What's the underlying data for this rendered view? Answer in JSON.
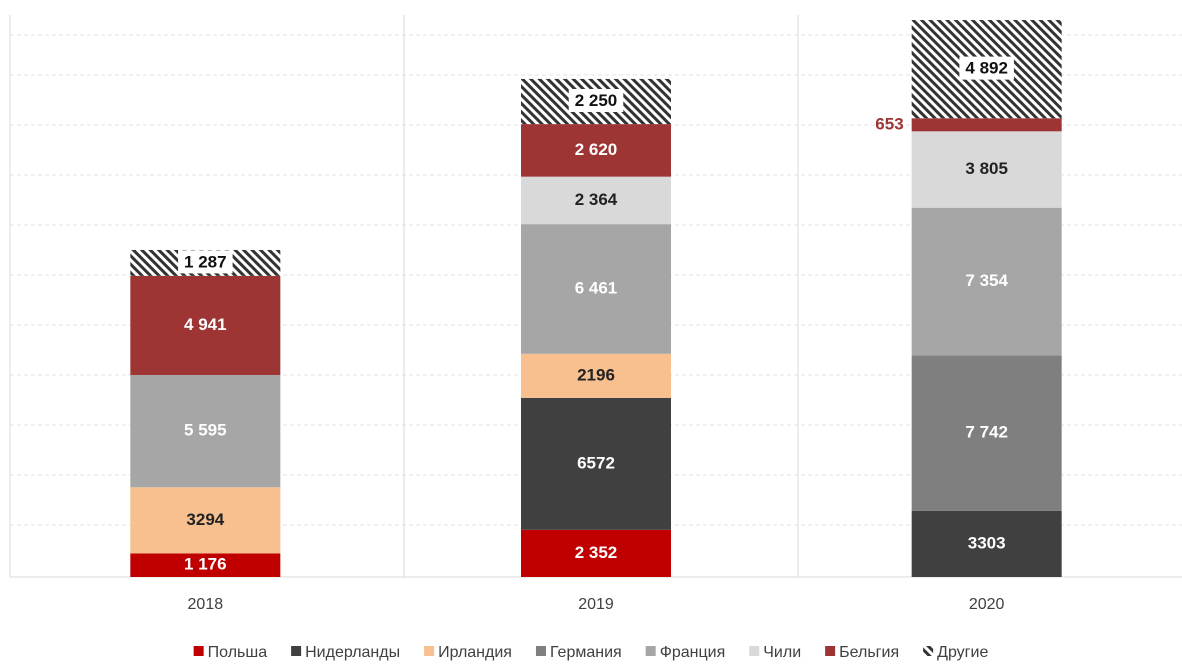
{
  "chart_data": {
    "type": "stacked_bar",
    "categories": [
      "2018",
      "2019",
      "2020"
    ],
    "ylim": [
      0,
      28000
    ],
    "legend": "bottom",
    "series": [
      {
        "name": "Польша",
        "color": "#c00000",
        "values": [
          1176,
          2352,
          null
        ],
        "value_labels": [
          "1 176",
          "2 352",
          null
        ]
      },
      {
        "name": "Нидерланды",
        "color": "#404040",
        "values": [
          null,
          6572,
          3303
        ],
        "value_labels": [
          null,
          "6572",
          "3303"
        ]
      },
      {
        "name": "Ирландия",
        "color": "#f8c08e",
        "values": [
          3294,
          2196,
          null
        ],
        "value_labels": [
          "3294",
          "2196",
          null
        ]
      },
      {
        "name": "Германия",
        "color": "#7f7f7f",
        "values": [
          null,
          null,
          7742
        ],
        "value_labels": [
          null,
          null,
          "7 742"
        ]
      },
      {
        "name": "Франция",
        "color": "#a6a6a6",
        "values": [
          5595,
          6461,
          7354
        ],
        "value_labels": [
          "5 595",
          "6 461",
          "7 354"
        ]
      },
      {
        "name": "Чили",
        "color": "#d9d9d9",
        "values": [
          null,
          2364,
          3805
        ],
        "value_labels": [
          null,
          "2 364",
          "3 805"
        ]
      },
      {
        "name": "Бельгия",
        "color": "#9e3535",
        "values": [
          4941,
          2620,
          653
        ],
        "value_labels": [
          "4 941",
          "2 620",
          "653"
        ]
      },
      {
        "name": "Другие",
        "color": "#555555",
        "pattern": "hatch",
        "values": [
          1287,
          2250,
          4892
        ],
        "value_labels": [
          "1 287",
          "2 250",
          "4 892"
        ]
      }
    ]
  }
}
